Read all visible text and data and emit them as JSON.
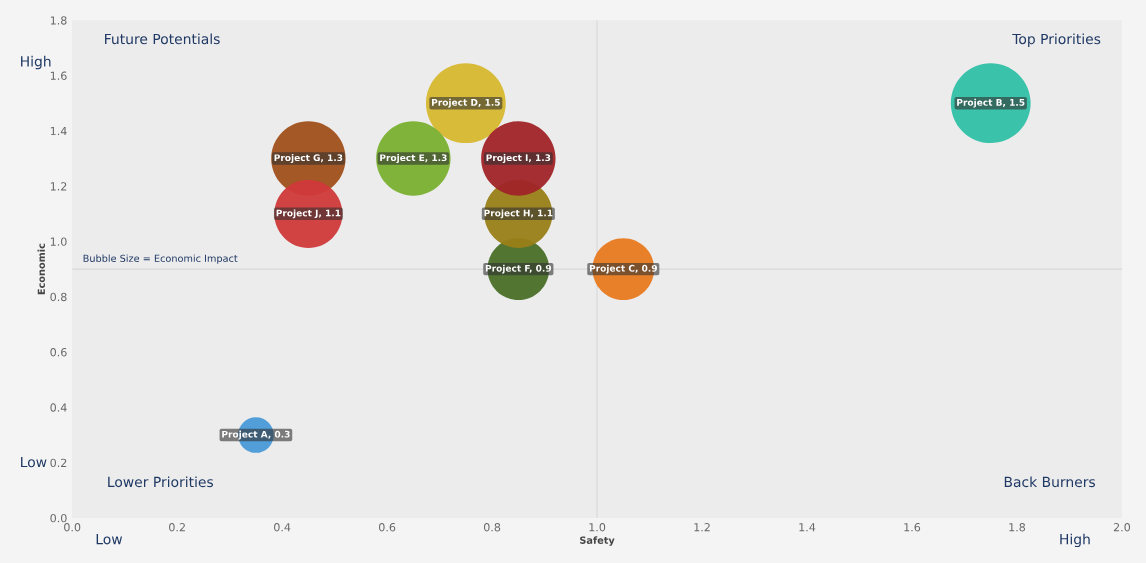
{
  "chart_data": {
    "type": "bubble",
    "xlabel": "Safety",
    "ylabel": "Economic",
    "x": [
      0.35,
      1.75,
      1.05,
      0.75,
      0.65,
      0.85,
      0.45,
      0.85,
      0.85,
      0.45
    ],
    "values": [
      0.3,
      1.5,
      0.9,
      1.5,
      1.3,
      0.9,
      1.3,
      1.1,
      1.3,
      1.1
    ],
    "sizes": [
      0.2,
      1,
      0.6,
      1,
      0.87,
      0.6,
      0.87,
      0.73,
      0.87,
      0.73
    ],
    "value_labels": [
      "Project A, 0.3",
      "Project B, 1.5",
      "Project C, 0.9",
      "Project D, 1.5",
      "Project E, 1.3",
      "Project F, 0.9",
      "Project G, 1.3",
      "Project H, 1.1",
      "Project I, 1.3",
      "Project J, 1.1"
    ],
    "colors": [
      "#4a9ad8",
      "#30c0a8",
      "#e87a20",
      "#d8b830",
      "#7ab030",
      "#4a7028",
      "#a0501a",
      "#9a8018",
      "#a02428",
      "#d0393a"
    ],
    "xlim": [
      0,
      2
    ],
    "ylim": [
      0,
      1.8
    ],
    "xticks": [
      {
        "value": 0,
        "label": "0.0"
      },
      0.2,
      0.4,
      0.6,
      0.8,
      {
        "value": 1,
        "label": "1.0"
      },
      1.2,
      1.4,
      1.6,
      1.8,
      {
        "value": 2,
        "label": "2.0"
      }
    ],
    "yticks": [
      {
        "value": 0,
        "label": "0.0"
      },
      0.2,
      0.4,
      0.6,
      0.8,
      {
        "value": 1,
        "label": "1.0"
      },
      1.2,
      1.4,
      1.6,
      1.8
    ],
    "ref_lines": [
      {
        "axis": "x",
        "value": 1,
        "color": "#d8d8d8"
      },
      {
        "axis": "y",
        "value": 0.9,
        "color": "#d8d8d8"
      }
    ],
    "grid": false,
    "annotations": [
      "Future Potentials",
      "Top Priorities",
      "Lower Priorities",
      "Back Burners",
      "Bubble Size = Economic Impact",
      "High",
      "Low",
      "Low",
      "High"
    ]
  }
}
